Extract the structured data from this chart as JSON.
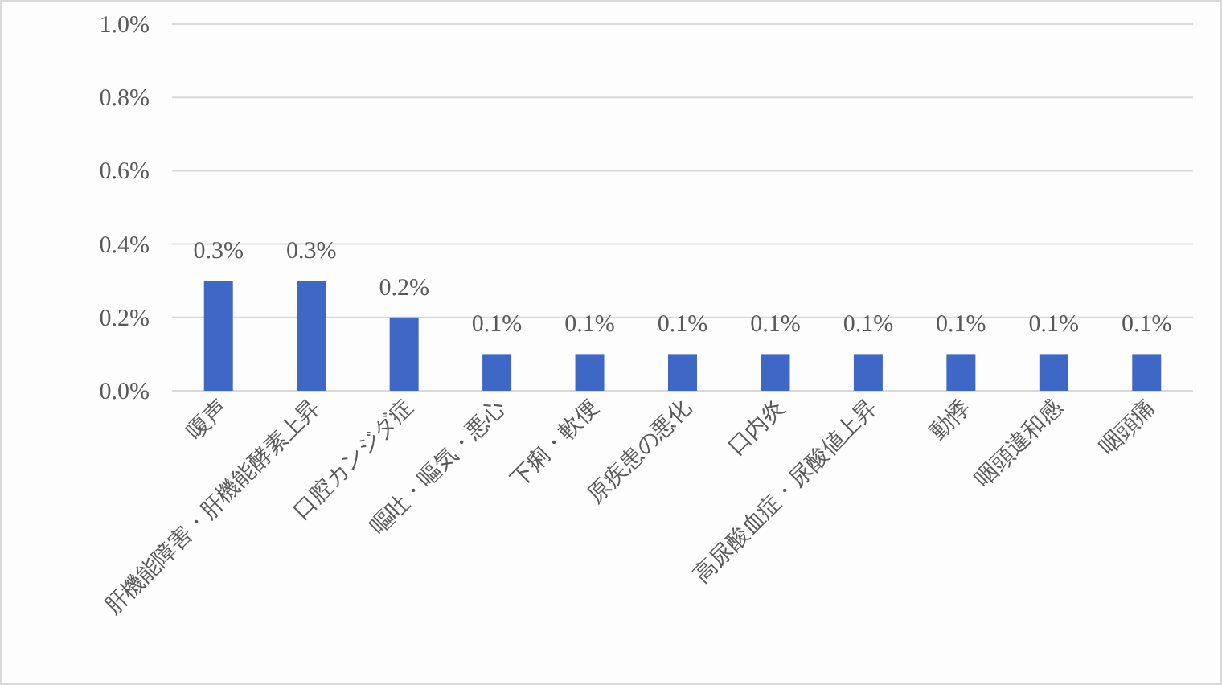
{
  "chart_data": {
    "type": "bar",
    "categories": [
      "嗄声",
      "肝機能障害・肝機能酵素上昇",
      "口腔カンジダ症",
      "嘔吐・嘔気・悪心",
      "下痢・軟便",
      "原疾患の悪化",
      "口内炎",
      "高尿酸血症・尿酸値上昇",
      "動悸",
      "咽頭違和感",
      "咽頭痛"
    ],
    "values": [
      0.3,
      0.3,
      0.2,
      0.1,
      0.1,
      0.1,
      0.1,
      0.1,
      0.1,
      0.1,
      0.1
    ],
    "value_labels": [
      "0.3%",
      "0.3%",
      "0.2%",
      "0.1%",
      "0.1%",
      "0.1%",
      "0.1%",
      "0.1%",
      "0.1%",
      "0.1%",
      "0.1%"
    ],
    "color": "#3f68c6",
    "ylim": [
      0,
      1.0
    ],
    "yticks": [
      {
        "value": 0,
        "label": "0.0%"
      },
      {
        "value": 0.2,
        "label": "0.2%"
      },
      {
        "value": 0.4,
        "label": "0.4%"
      },
      {
        "value": 0.6,
        "label": "0.6%"
      },
      {
        "value": 0.8,
        "label": "0.8%"
      },
      {
        "value": 1.0,
        "label": "1.0%"
      }
    ],
    "grid": "y"
  }
}
